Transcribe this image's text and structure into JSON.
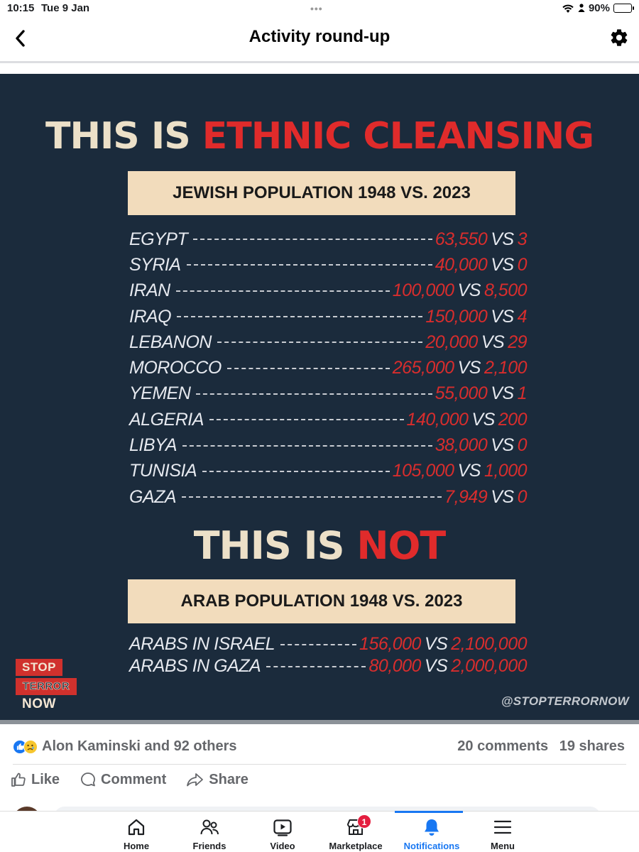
{
  "status_bar": {
    "time": "10:15",
    "date": "Tue 9 Jan",
    "battery": "90%",
    "battery_level": 0.9
  },
  "header": {
    "title": "Activity round-up"
  },
  "poster": {
    "headline1_white": "THIS IS",
    "headline1_red": "ETHNIC CLEANSING",
    "banner1": "JEWISH POPULATION 1948 VS. 2023",
    "rows1": [
      {
        "country": "EGYPT",
        "v1948": "63,550",
        "vs": "VS",
        "v2023": "3"
      },
      {
        "country": "SYRIA",
        "v1948": "40,000",
        "vs": "VS",
        "v2023": "0"
      },
      {
        "country": "IRAN",
        "v1948": "100,000",
        "vs": "VS",
        "v2023": "8,500"
      },
      {
        "country": "IRAQ",
        "v1948": "150,000",
        "vs": "VS",
        "v2023": "4"
      },
      {
        "country": "LEBANON",
        "v1948": "20,000",
        "vs": "VS",
        "v2023": "29"
      },
      {
        "country": "MOROCCO",
        "v1948": "265,000",
        "vs": "VS",
        "v2023": "2,100"
      },
      {
        "country": "YEMEN",
        "v1948": "55,000",
        "vs": "VS",
        "v2023": "1"
      },
      {
        "country": "ALGERIA",
        "v1948": "140,000",
        "vs": "VS",
        "v2023": "200"
      },
      {
        "country": "LIBYA",
        "v1948": "38,000",
        "vs": "VS",
        "v2023": "0"
      },
      {
        "country": "TUNISIA",
        "v1948": "105,000",
        "vs": "VS",
        "v2023": "1,000"
      },
      {
        "country": "GAZA",
        "v1948": "7,949",
        "vs": "VS",
        "v2023": "0"
      }
    ],
    "headline2_white": "THIS IS",
    "headline2_red": "NOT",
    "banner2": "ARAB POPULATION 1948 VS. 2023",
    "rows2": [
      {
        "country": "ARABS IN ISRAEL",
        "v1948": "156,000",
        "vs": "VS",
        "v2023": "2,100,000"
      },
      {
        "country": "ARABS IN GAZA",
        "v1948": "80,000",
        "vs": "VS",
        "v2023": "2,000,000"
      }
    ],
    "logo": {
      "line1": "STOP",
      "line2": "TERROR",
      "line3": "NOW"
    },
    "handle": "@STOPTERRORNOW"
  },
  "post": {
    "reactors": "Alon Kaminski and 92 others",
    "comments": "20 comments",
    "shares": "19 shares",
    "like_label": "Like",
    "comment_label": "Comment",
    "share_label": "Share"
  },
  "tabbar": {
    "tabs": [
      {
        "label": "Home"
      },
      {
        "label": "Friends"
      },
      {
        "label": "Video"
      },
      {
        "label": "Marketplace",
        "badge": "1"
      },
      {
        "label": "Notifications"
      },
      {
        "label": "Menu"
      }
    ]
  },
  "colors": {
    "poster_bg": "#1b2b3c",
    "accent_red": "#e02b2b",
    "banner": "#f2dcbc",
    "fb_blue": "#1877f2"
  }
}
